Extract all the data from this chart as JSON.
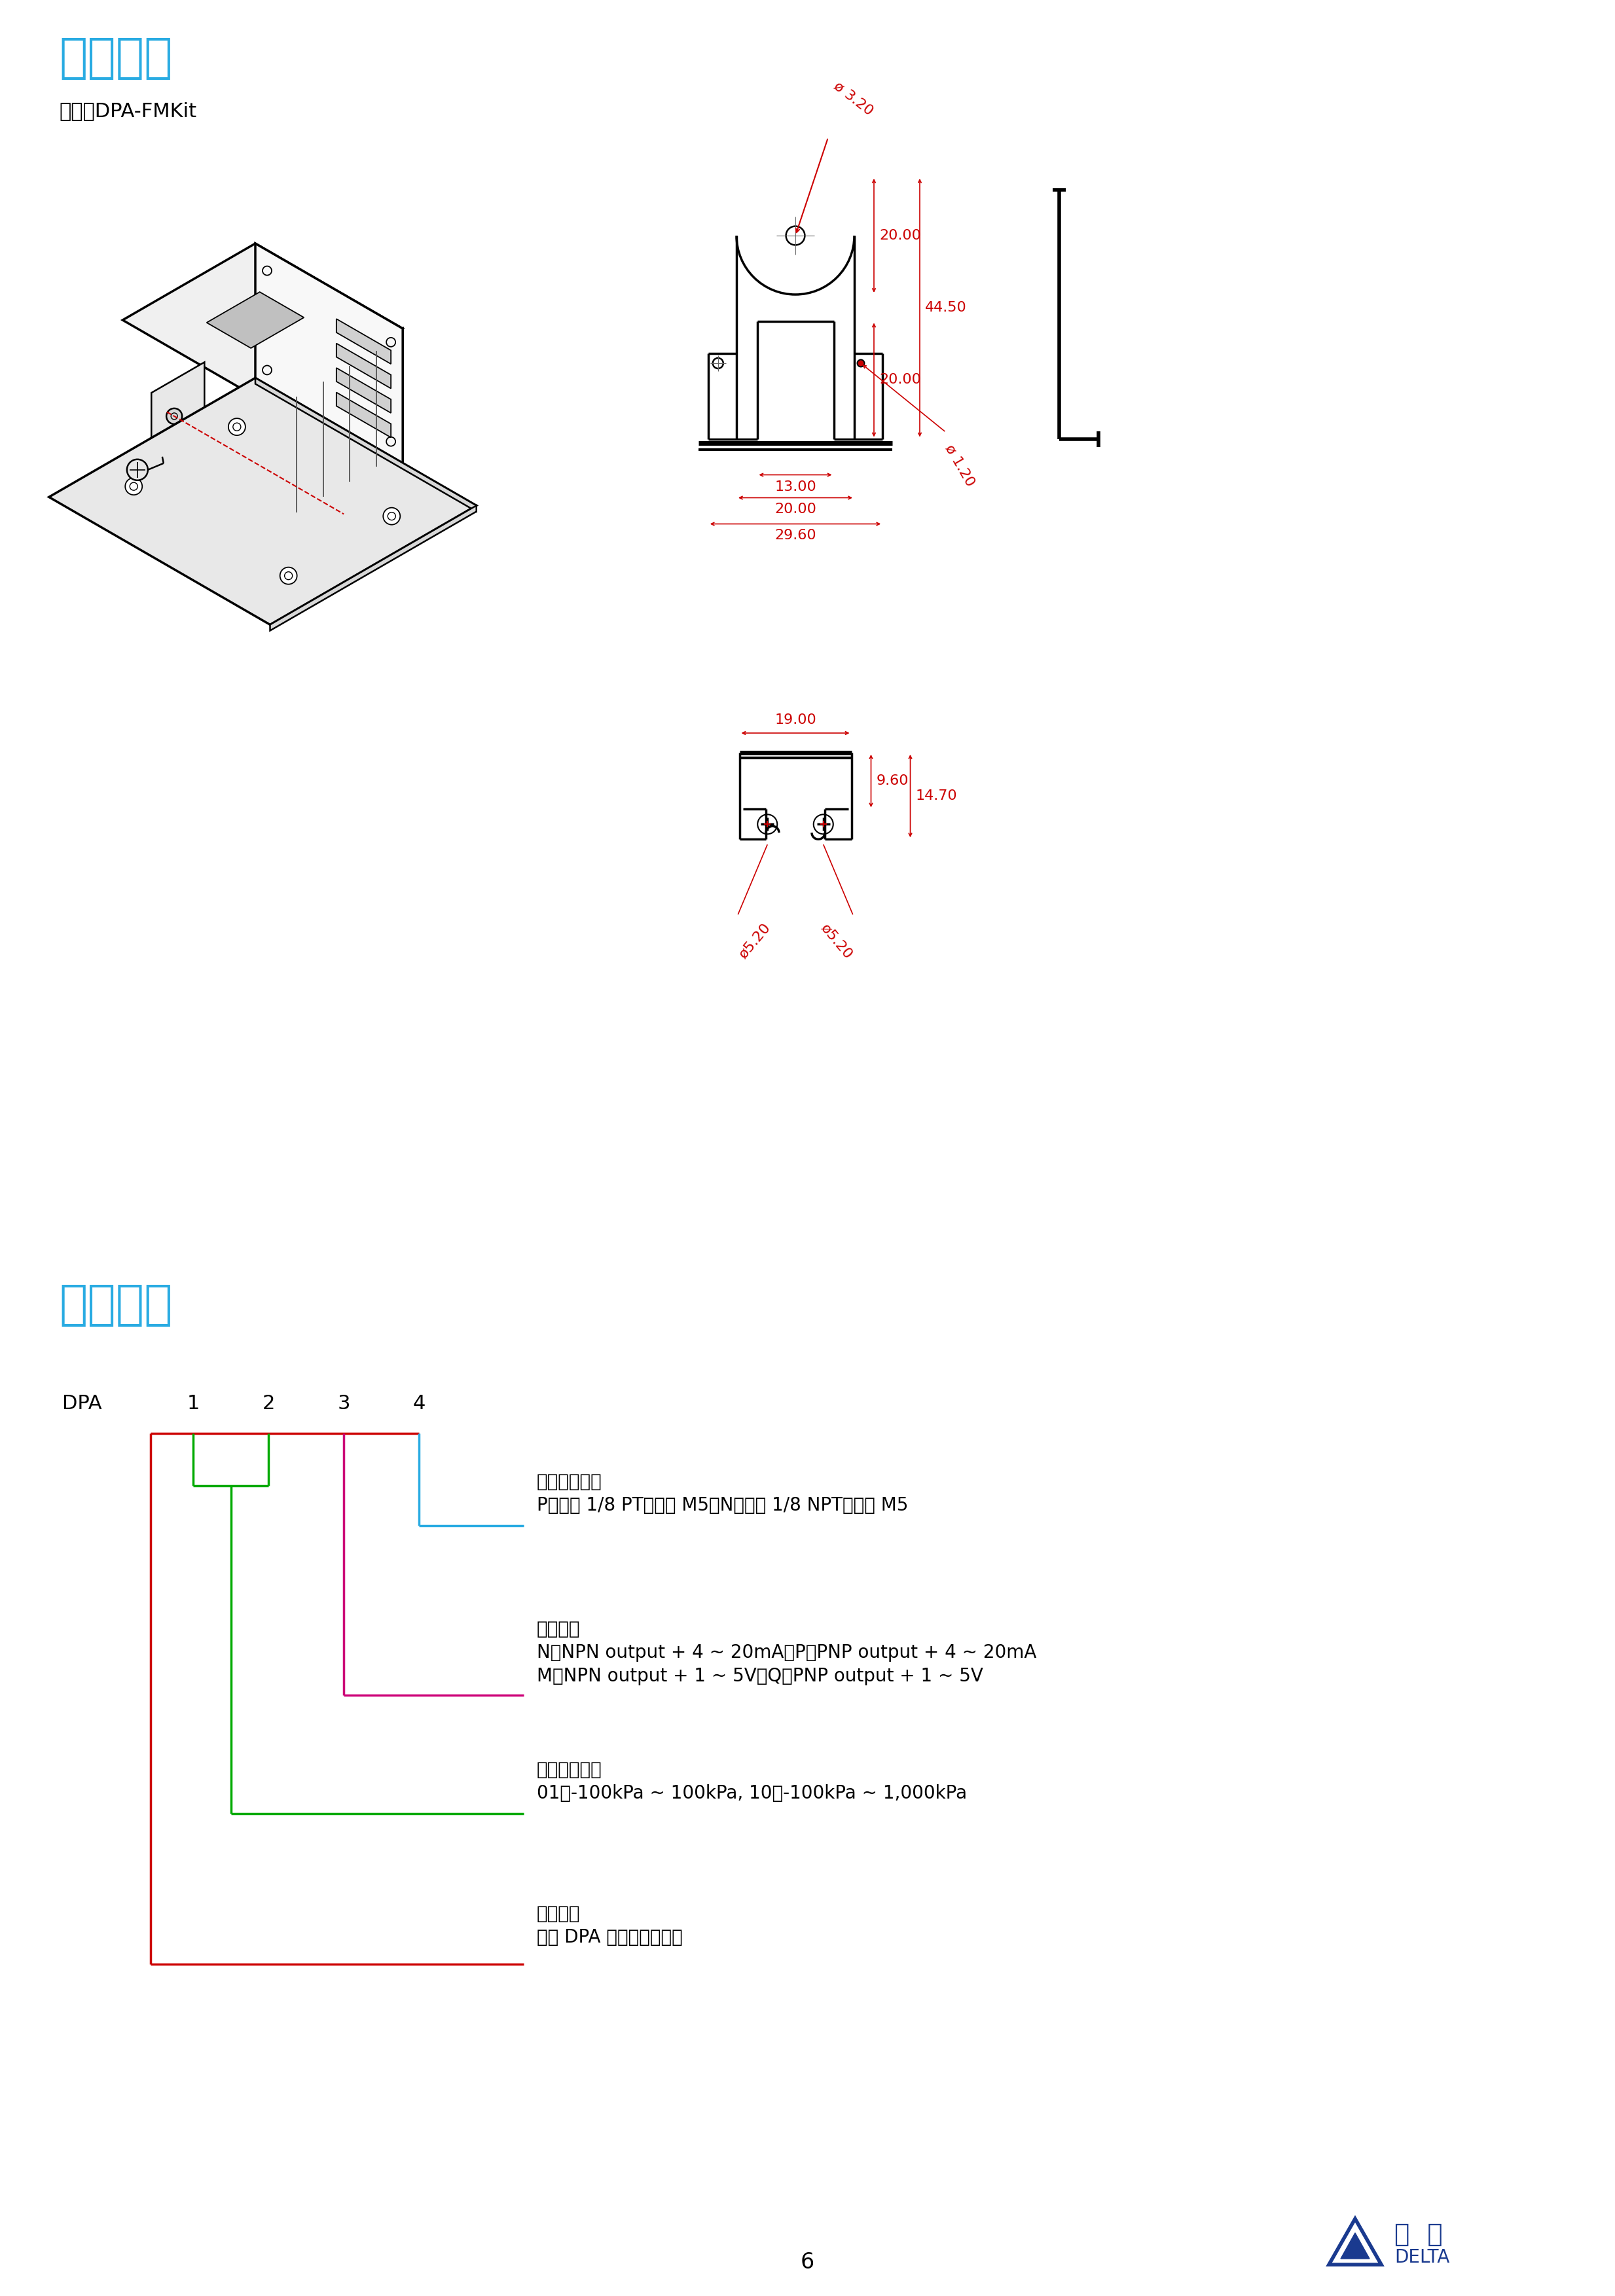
{
  "title1": "角架配件",
  "model_label": "型號：DPA-FMKit",
  "title2": "选购资讯",
  "title_color": "#29ABE2",
  "dpa_label": "DPA",
  "digit_labels": [
    "1",
    "2",
    "3",
    "4"
  ],
  "section2_entries": [
    {
      "label": "压力气孔型式",
      "desc1": "P：外孔 1/8 PT、内孔 M5；N：外孔 1/8 NPT、内孔 M5",
      "desc2": ""
    },
    {
      "label": "输出型式",
      "desc1": "N：NPN output + 4 ~ 20mA；P：PNP output + 4 ~ 20mA",
      "desc2": "M：NPN output + 1 ~ 5V；Q：PNP output + 1 ~ 5V"
    },
    {
      "label": "测量压力范围",
      "desc1": "01：-100kPa ~ 100kPa, 10：-100kPa ~ 1,000kPa",
      "desc2": ""
    },
    {
      "label": "产品名称",
      "desc1": "台达 DPA 系列压力传感器",
      "desc2": ""
    }
  ],
  "page_number": "6",
  "dim_color": "#CC0000",
  "dims": {
    "d320": "ø 3.20",
    "d2000a": "20.00",
    "d4450": "44.50",
    "d2000b": "20.00",
    "d1300": "13.00",
    "d2000c": "20.00",
    "d2960": "29.60",
    "d120": "ø 1.20",
    "d1900": "19.00",
    "d960": "9.60",
    "d1470": "14.70",
    "d520a": "ø5.20",
    "d520b": "ø5.20"
  }
}
